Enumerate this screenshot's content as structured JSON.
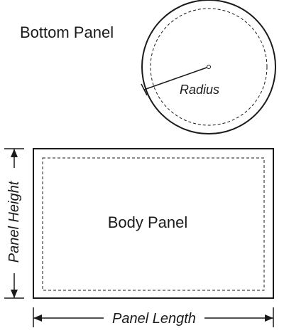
{
  "bottom_panel": {
    "title": "Bottom Panel",
    "radius_label": "Radius"
  },
  "body_panel": {
    "title": "Body Panel",
    "height_label": "Panel Height",
    "length_label": "Panel Length"
  },
  "colors": {
    "stroke": "#1a1a1a",
    "background": "#ffffff"
  }
}
